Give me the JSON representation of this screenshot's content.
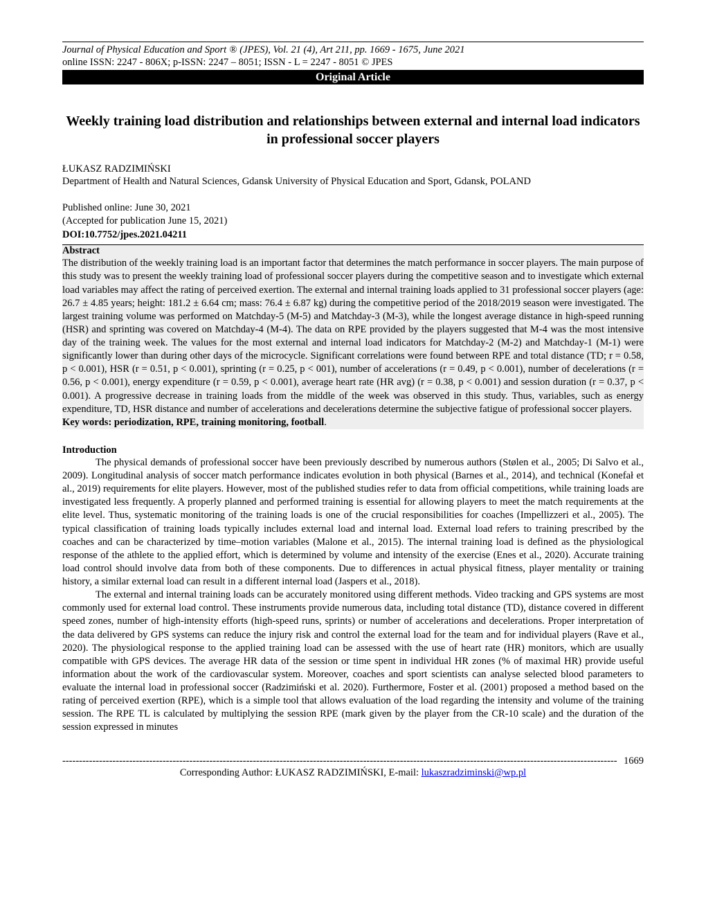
{
  "header": {
    "journal_name": "Journal of Physical Education and Sport",
    "reg_mark": "®",
    "journal_suffix": " (JPES), Vol. 21 (4), Art 211,  pp. 1669 - 1675, June 2021",
    "issn_line": "online ISSN: 2247 - 806X; p-ISSN: 2247 – 8051; ISSN - L = 2247 - 8051 ",
    "copyright": "© JPES",
    "article_type": "Original Article"
  },
  "title": "Weekly training load distribution and relationships between external and internal load indicators in professional soccer players",
  "author": "ŁUKASZ RADZIMIŃSKI",
  "affiliation": "Department of Health and Natural Sciences, Gdansk University of Physical Education and Sport, Gdansk, POLAND",
  "published_online": "Published online: June 30, 2021",
  "accepted": "(Accepted for publication June 15, 2021)",
  "doi": "DOI:10.7752/jpes.2021.04211",
  "abstract": {
    "heading": "Abstract",
    "text": "The distribution of the weekly training load is an important factor that determines the match performance in soccer players. The main purpose of this study was to present the weekly training load of professional soccer players during the competitive season and to investigate which external load variables may affect the rating of perceived exertion. The external and internal training loads applied to 31 professional soccer players (age: 26.7 ± 4.85 years; height: 181.2 ± 6.64 cm; mass: 76.4 ± 6.87 kg) during the competitive period of the 2018/2019 season were investigated. The largest training volume was performed on Matchday-5 (M-5) and Matchday-3 (M-3), while the longest average distance in high-speed running (HSR) and sprinting was covered on Matchday-4 (M-4). The data on RPE provided by the players suggested that M-4 was the most intensive day of the training week. The values for the most external and internal load indicators for Matchday-2 (M-2) and Matchday-1 (M-1) were significantly lower than during other days of the microcycle. Significant correlations were found between RPE and total distance (TD; r = 0.58, p < 0.001), HSR (r = 0.51, p < 0.001), sprinting (r = 0.25, p < 001), number of accelerations (r = 0.49, p < 0.001), number of decelerations (r = 0.56, p < 0.001), energy expenditure (r = 0.59, p < 0.001), average heart rate (HR avg) (r = 0.38, p < 0.001) and session duration (r = 0.37, p < 0.001). A progressive decrease in training loads from the middle of the week was observed in this study. Thus, variables, such as energy expenditure, TD, HSR distance and number of accelerations and decelerations determine the subjective fatigue of professional soccer players.",
    "keywords_label": "Key words: periodization, RPE, training monitoring, football"
  },
  "introduction": {
    "heading": "Introduction",
    "para1": "The physical demands of professional soccer have been previously described by numerous authors (Stølen et al., 2005; Di Salvo et al., 2009). Longitudinal analysis of soccer match performance indicates evolution in both physical (Barnes et al., 2014), and technical (Konefał et al., 2019) requirements for elite players. However, most of the published studies refer to data from official competitions, while training loads are investigated less frequently. A properly planned and performed training is essential for allowing players to meet the match requirements at the elite level. Thus, systematic monitoring of the training loads is one of the crucial responsibilities for coaches (Impellizzeri et al., 2005). The typical classification of training loads typically includes external load and internal load. External load refers to training prescribed by the coaches and can be characterized by time–motion variables (Malone et al., 2015). The internal training load is defined as the physiological response of the athlete to the applied effort, which is determined by volume and intensity of the exercise (Enes et al., 2020). Accurate training load control should involve data from both of these components. Due to differences in actual physical fitness, player mentality or training history, a similar external load can result in a different internal load (Jaspers et al., 2018).",
    "para2": "The external and internal training loads can be accurately monitored using different methods. Video tracking and GPS systems are most commonly used for external load control. These instruments provide numerous data, including total distance (TD), distance covered in different speed zones, number of high-intensity efforts (high-speed runs, sprints) or number of accelerations and decelerations. Proper interpretation of the data delivered by GPS systems can reduce the injury risk and control the external load for the team and for individual players (Rave et al., 2020). The physiological response to the applied training load can be assessed with the use of heart rate (HR) monitors, which are usually compatible with GPS devices. The average HR data of the session or time spent in individual HR zones (% of maximal HR) provide useful information about the work of the cardiovascular system. Moreover, coaches and sport scientists can analyse selected blood parameters to evaluate the internal load in professional soccer (Radzimiński et al. 2020). Furthermore, Foster et al. (2001) proposed a method based on the rating of perceived exertion (RPE), which is a simple tool that allows evaluation of the load regarding the intensity and volume of the training session. The RPE TL is calculated by multiplying the session RPE (mark given by the player from the CR-10 scale) and the duration of the session expressed in minutes"
  },
  "footer": {
    "page_number": "1669",
    "corresponding_label": "Corresponding Author: ŁUKASZ RADZIMIŃSKI,  E-mail: ",
    "email": "lukaszradziminski@wp.pl"
  }
}
